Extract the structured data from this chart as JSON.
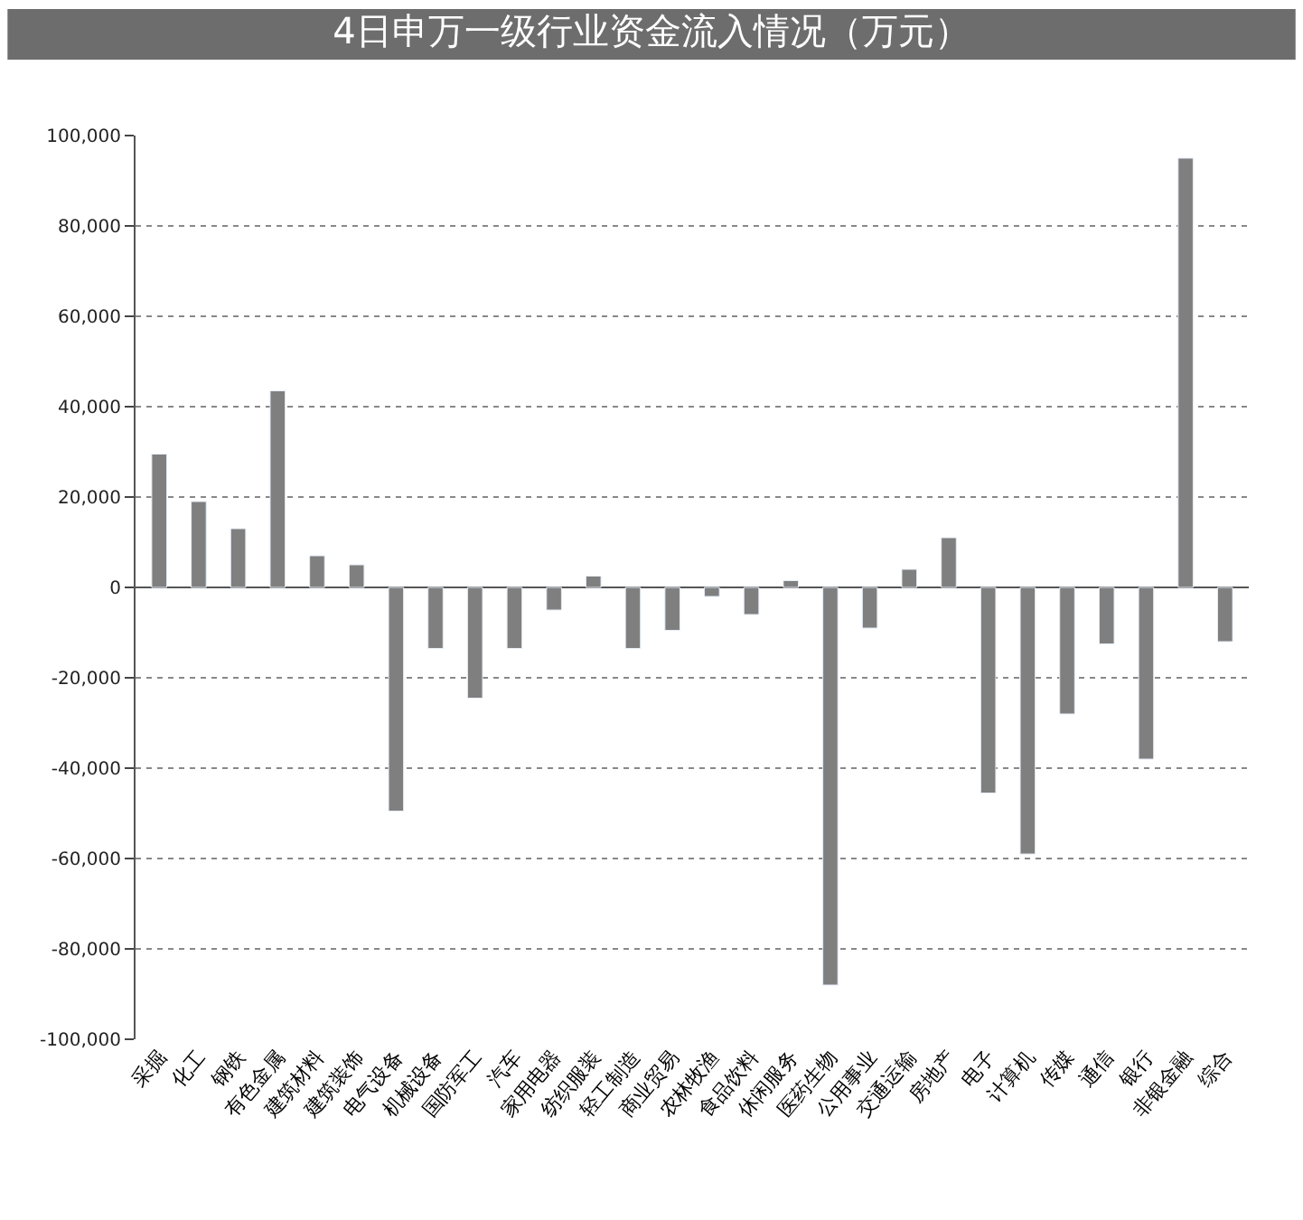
{
  "chart_data": {
    "type": "bar",
    "title": "4日申万一级行业资金流入情况（万元）",
    "categories": [
      "采掘",
      "化工",
      "钢铁",
      "有色金属",
      "建筑材料",
      "建筑装饰",
      "电气设备",
      "机械设备",
      "国防军工",
      "汽车",
      "家用电器",
      "纺织服装",
      "轻工制造",
      "商业贸易",
      "农林牧渔",
      "食品饮料",
      "休闲服务",
      "医药生物",
      "公用事业",
      "交通运输",
      "房地产",
      "电子",
      "计算机",
      "传媒",
      "通信",
      "银行",
      "非银金融",
      "综合"
    ],
    "values": [
      29500,
      19000,
      13000,
      43500,
      7000,
      5000,
      -49500,
      -13500,
      -24500,
      -13500,
      -5000,
      2500,
      -13500,
      -9500,
      -2000,
      -6000,
      1500,
      -88000,
      -9000,
      4000,
      11000,
      -45500,
      -59000,
      -28000,
      -12500,
      -38000,
      95000,
      -12000
    ],
    "color": "#7f7f7f",
    "ylim": [
      -100000,
      100000
    ],
    "yticks": [
      {
        "value": -100000,
        "label": "-100,000"
      },
      {
        "value": -80000,
        "label": "-80,000"
      },
      {
        "value": -60000,
        "label": "-60,000"
      },
      {
        "value": -40000,
        "label": "-40,000"
      },
      {
        "value": -20000,
        "label": "-20,000"
      },
      0,
      {
        "value": 20000,
        "label": "20,000"
      },
      {
        "value": 40000,
        "label": "40,000"
      },
      {
        "value": 60000,
        "label": "60,000"
      },
      {
        "value": 80000,
        "label": "80,000"
      },
      {
        "value": 100000,
        "label": "100,000"
      }
    ],
    "grid": "y",
    "legend": false
  }
}
